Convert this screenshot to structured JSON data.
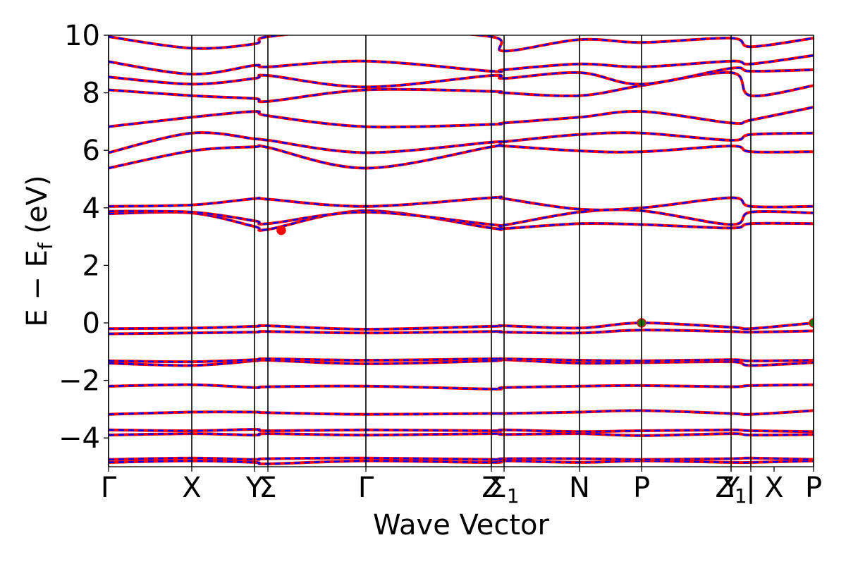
{
  "chart_data": {
    "type": "line",
    "title": "",
    "xlabel": "Wave Vector",
    "ylabel": "E − E_f (eV)",
    "ylabel_parts": {
      "main": "E − E",
      "sub": "f",
      "unit": " (eV)"
    },
    "ylim": [
      -5,
      10
    ],
    "yticks": [
      -4,
      -2,
      0,
      2,
      4,
      6,
      8,
      10
    ],
    "ytick_labels": [
      "−4",
      "−2",
      "0",
      "2",
      "4",
      "6",
      "8",
      "10"
    ],
    "kpath": [
      {
        "label": "Γ",
        "x": 0
      },
      {
        "label": "X",
        "x": 0.118
      },
      {
        "label": "Y",
        "x": 0.207
      },
      {
        "label": "Σ",
        "x": 0.226
      },
      {
        "label": "Γ",
        "x": 0.365
      },
      {
        "label": "Z",
        "x": 0.543
      },
      {
        "label": "Σ",
        "sub": "1",
        "x": 0.561
      },
      {
        "label": "N",
        "x": 0.668
      },
      {
        "label": "P",
        "x": 0.756
      },
      {
        "label": "Y",
        "x": 0.883
      },
      {
        "label": "Z",
        "sub": "1",
        "x": 0.883
      },
      {
        "label": "|",
        "x": 0.911
      },
      {
        "label": "X",
        "x": 0.944
      },
      {
        "label": "P",
        "x": 1.0
      }
    ],
    "tick_lines": [
      0,
      0.118,
      0.207,
      0.226,
      0.365,
      0.543,
      0.561,
      0.668,
      0.756,
      0.883,
      0.911,
      1.0
    ],
    "bands": [
      {
        "x": [
          0,
          0.118,
          0.207,
          0.226,
          0.365,
          0.543,
          0.561,
          0.668,
          0.756,
          0.883,
          0.911,
          1.0
        ],
        "y": [
          -4.85,
          -4.8,
          -4.85,
          -4.9,
          -4.8,
          -4.85,
          -4.8,
          -4.85,
          -4.8,
          -4.85,
          -4.85,
          -4.8
        ]
      },
      {
        "x": [
          0,
          0.118,
          0.207,
          0.226,
          0.365,
          0.543,
          0.561,
          0.668,
          0.756,
          0.883,
          0.911,
          1.0
        ],
        "y": [
          -4.75,
          -4.7,
          -4.75,
          -4.72,
          -4.7,
          -4.75,
          -4.72,
          -4.72,
          -4.75,
          -4.72,
          -4.7,
          -4.75
        ]
      },
      {
        "x": [
          0,
          0.118,
          0.207,
          0.226,
          0.365,
          0.543,
          0.561,
          0.668,
          0.756,
          0.883,
          0.911,
          1.0
        ],
        "y": [
          -3.9,
          -3.85,
          -3.9,
          -3.85,
          -3.9,
          -3.85,
          -3.88,
          -3.85,
          -3.92,
          -3.85,
          -3.9,
          -3.88
        ]
      },
      {
        "x": [
          0,
          0.118,
          0.207,
          0.226,
          0.365,
          0.543,
          0.561,
          0.668,
          0.756,
          0.883,
          0.911,
          1.0
        ],
        "y": [
          -3.72,
          -3.75,
          -3.7,
          -3.75,
          -3.72,
          -3.75,
          -3.72,
          -3.78,
          -3.75,
          -3.72,
          -3.75,
          -3.78
        ]
      },
      {
        "x": [
          0,
          0.118,
          0.207,
          0.226,
          0.365,
          0.543,
          0.561,
          0.668,
          0.756,
          0.883,
          0.911,
          1.0
        ],
        "y": [
          -3.18,
          -3.1,
          -3.1,
          -3.12,
          -3.18,
          -3.15,
          -3.15,
          -3.1,
          -3.05,
          -3.15,
          -3.18,
          -3.05
        ]
      },
      {
        "x": [
          0,
          0.118,
          0.207,
          0.226,
          0.365,
          0.543,
          0.561,
          0.668,
          0.756,
          0.883,
          0.911,
          1.0
        ],
        "y": [
          -2.2,
          -2.15,
          -2.25,
          -2.22,
          -2.2,
          -2.3,
          -2.25,
          -2.2,
          -2.18,
          -2.22,
          -2.18,
          -2.15
        ]
      },
      {
        "x": [
          0,
          0.118,
          0.207,
          0.226,
          0.365,
          0.543,
          0.561,
          0.668,
          0.756,
          0.883,
          0.911,
          1.0
        ],
        "y": [
          -1.4,
          -1.48,
          -1.32,
          -1.3,
          -1.42,
          -1.32,
          -1.28,
          -1.4,
          -1.38,
          -1.35,
          -1.48,
          -1.38
        ]
      },
      {
        "x": [
          0,
          0.118,
          0.207,
          0.226,
          0.365,
          0.543,
          0.561,
          0.668,
          0.756,
          0.883,
          0.911,
          1.0
        ],
        "y": [
          -1.32,
          -1.35,
          -1.28,
          -1.25,
          -1.3,
          -1.25,
          -1.25,
          -1.3,
          -1.32,
          -1.28,
          -1.32,
          -1.3
        ]
      },
      {
        "x": [
          0,
          0.118,
          0.207,
          0.226,
          0.365,
          0.543,
          0.561,
          0.668,
          0.756,
          0.883,
          0.911,
          1.0
        ],
        "y": [
          -0.38,
          -0.35,
          -0.32,
          -0.3,
          -0.35,
          -0.3,
          -0.32,
          -0.35,
          -0.25,
          -0.3,
          -0.32,
          -0.28
        ]
      },
      {
        "x": [
          0,
          0.118,
          0.207,
          0.226,
          0.365,
          0.543,
          0.561,
          0.668,
          0.756,
          0.883,
          0.911,
          1.0
        ],
        "y": [
          -0.2,
          -0.18,
          -0.12,
          -0.1,
          -0.22,
          -0.12,
          -0.1,
          -0.18,
          0.0,
          -0.15,
          -0.2,
          0.0
        ]
      },
      {
        "x": [
          0,
          0.118,
          0.207,
          0.226,
          0.365,
          0.543,
          0.561,
          0.668,
          0.756,
          0.883,
          0.911,
          1.0
        ],
        "y": [
          3.8,
          3.82,
          3.35,
          3.25,
          3.9,
          3.3,
          3.28,
          3.45,
          3.42,
          3.3,
          3.45,
          3.45
        ]
      },
      {
        "x": [
          0,
          0.118,
          0.207,
          0.226,
          0.365,
          0.543,
          0.561,
          0.668,
          0.756,
          0.883,
          0.911,
          1.0
        ],
        "y": [
          3.88,
          3.85,
          3.55,
          3.45,
          3.85,
          3.42,
          3.4,
          3.85,
          3.9,
          3.42,
          3.85,
          3.82
        ]
      },
      {
        "x": [
          0,
          0.118,
          0.207,
          0.226,
          0.365,
          0.543,
          0.561,
          0.668,
          0.756,
          0.883,
          0.911,
          1.0
        ],
        "y": [
          4.05,
          4.1,
          4.32,
          4.3,
          4.05,
          4.35,
          4.32,
          3.95,
          4.0,
          4.35,
          4.05,
          4.05
        ]
      },
      {
        "x": [
          0,
          0.118,
          0.207,
          0.226,
          0.365,
          0.543,
          0.561,
          0.668,
          0.756,
          0.883,
          0.911,
          1.0
        ],
        "y": [
          5.38,
          5.98,
          6.12,
          6.1,
          5.38,
          6.12,
          6.15,
          5.98,
          5.95,
          6.15,
          5.95,
          5.95
        ]
      },
      {
        "x": [
          0,
          0.118,
          0.207,
          0.226,
          0.365,
          0.543,
          0.561,
          0.668,
          0.756,
          0.883,
          0.911,
          1.0
        ],
        "y": [
          5.92,
          6.6,
          6.4,
          6.35,
          5.92,
          6.28,
          6.3,
          6.55,
          6.6,
          6.35,
          6.55,
          6.6
        ]
      },
      {
        "x": [
          0,
          0.118,
          0.207,
          0.226,
          0.365,
          0.543,
          0.561,
          0.668,
          0.756,
          0.883,
          0.911,
          1.0
        ],
        "y": [
          6.82,
          7.15,
          7.35,
          7.2,
          6.82,
          6.9,
          6.95,
          7.15,
          7.35,
          6.95,
          7.05,
          7.5
        ]
      },
      {
        "x": [
          0,
          0.118,
          0.207,
          0.226,
          0.365,
          0.543,
          0.561,
          0.668,
          0.756,
          0.883,
          0.911,
          1.0
        ],
        "y": [
          8.1,
          7.9,
          7.8,
          7.7,
          8.1,
          8.05,
          8.0,
          7.9,
          8.25,
          8.7,
          7.9,
          8.25
        ]
      },
      {
        "x": [
          0,
          0.118,
          0.207,
          0.226,
          0.365,
          0.543,
          0.561,
          0.668,
          0.756,
          0.883,
          0.911,
          1.0
        ],
        "y": [
          8.55,
          8.3,
          8.5,
          8.6,
          8.2,
          8.6,
          8.5,
          8.7,
          8.3,
          8.85,
          8.75,
          8.8
        ]
      },
      {
        "x": [
          0,
          0.118,
          0.207,
          0.226,
          0.365,
          0.543,
          0.561,
          0.668,
          0.756,
          0.883,
          0.911,
          1.0
        ],
        "y": [
          9.08,
          8.65,
          8.95,
          8.9,
          9.1,
          8.75,
          8.8,
          9.0,
          8.9,
          9.1,
          9.0,
          9.3
        ]
      },
      {
        "x": [
          0,
          0.118,
          0.207,
          0.226,
          0.365,
          0.543,
          0.561,
          0.668,
          0.756,
          0.883,
          0.911,
          1.0
        ],
        "y": [
          9.95,
          9.55,
          9.7,
          9.95,
          10.2,
          9.95,
          9.45,
          9.85,
          9.75,
          9.9,
          9.6,
          9.9
        ]
      }
    ],
    "markers": [
      {
        "x": 0.245,
        "y": 3.22,
        "color": "#ff0000"
      },
      {
        "x": 0.756,
        "y": 0.0,
        "color": "#007f00"
      },
      {
        "x": 1.0,
        "y": 0.0,
        "color": "#007f00"
      }
    ],
    "colors": {
      "band_solid": "#ff0000",
      "band_dash": "#0000ff",
      "axes": "#000000"
    }
  }
}
